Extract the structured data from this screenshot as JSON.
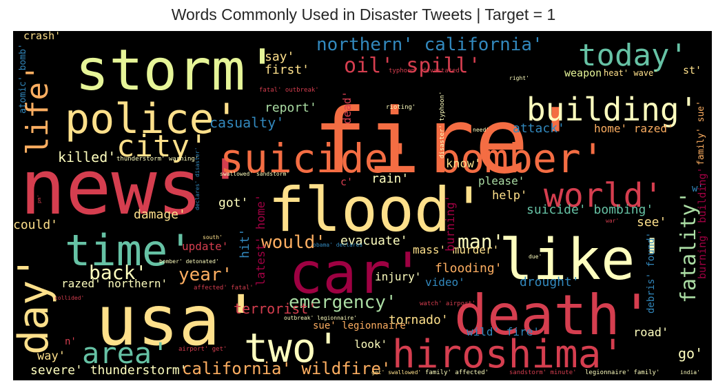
{
  "chart_data": {
    "type": "wordcloud",
    "title": "Words Commonly Used in Disaster Tweets | Target = 1",
    "background": "#000000",
    "colormap": [
      "#d53e4f",
      "#f46d43",
      "#fdae61",
      "#fee08b",
      "#ffffbf",
      "#e6f598",
      "#abdda4",
      "#66c2a5",
      "#3288bd",
      "#9e0142",
      "#5e4fa2"
    ],
    "words": [
      {
        "text": "fire'",
        "color": "#f46d43"
      },
      {
        "text": "news'",
        "color": "#d53e4f"
      },
      {
        "text": "usa'",
        "color": "#fee08b"
      },
      {
        "text": "storm'",
        "color": "#e6f598"
      },
      {
        "text": "flood'",
        "color": "#fee08b"
      },
      {
        "text": "death'",
        "color": "#d53e4f"
      },
      {
        "text": "like'",
        "color": "#ffffbf"
      },
      {
        "text": "car'",
        "color": "#9e0142"
      },
      {
        "text": "suicide' bomber'",
        "color": "#f46d43"
      },
      {
        "text": "police'",
        "color": "#fee08b"
      },
      {
        "text": "time'",
        "color": "#66c2a5"
      },
      {
        "text": "hiroshima'",
        "color": "#d53e4f"
      },
      {
        "text": "two'",
        "color": "#ffffbf"
      },
      {
        "text": "building'",
        "color": "#ffffbf"
      },
      {
        "text": "day'",
        "color": "#fee08b"
      },
      {
        "text": "world'",
        "color": "#d53e4f"
      },
      {
        "text": "today'",
        "color": "#66c2a5"
      },
      {
        "text": "area'",
        "color": "#66c2a5"
      },
      {
        "text": "city'",
        "color": "#fee08b"
      },
      {
        "text": "life'",
        "color": "#fdae61"
      },
      {
        "text": "northern' california'",
        "color": "#3288bd"
      },
      {
        "text": "oil' spill'",
        "color": "#d53e4f"
      },
      {
        "text": "fatality'",
        "color": "#abdda4"
      },
      {
        "text": "emergency'",
        "color": "#abdda4"
      },
      {
        "text": "back'",
        "color": "#ffffbf"
      },
      {
        "text": "would'",
        "color": "#fdae61"
      },
      {
        "text": "man'",
        "color": "#ffffbf"
      },
      {
        "text": "year'",
        "color": "#fdae61"
      },
      {
        "text": "california' wildfire'",
        "color": "#fdae61"
      },
      {
        "text": "killed'",
        "color": "#ffffbf"
      },
      {
        "text": "casualty'",
        "color": "#3288bd"
      },
      {
        "text": "severe' thunderstorm'",
        "color": "#ffffbf"
      },
      {
        "text": "terrorist'",
        "color": "#d53e4f"
      },
      {
        "text": "tornado'",
        "color": "#fee08b"
      },
      {
        "text": "evacuate'",
        "color": "#ffffbf"
      },
      {
        "text": "flooding'",
        "color": "#fdae61"
      },
      {
        "text": "drought'",
        "color": "#3288bd"
      },
      {
        "text": "suicide' bombing'",
        "color": "#66c2a5"
      },
      {
        "text": "report'",
        "color": "#abdda4"
      },
      {
        "text": "attack'",
        "color": "#3288bd"
      },
      {
        "text": "home' razed'",
        "color": "#fdae61"
      },
      {
        "text": "crash'",
        "color": "#fee08b"
      },
      {
        "text": "say'",
        "color": "#fee08b"
      },
      {
        "text": "first'",
        "color": "#fee08b"
      },
      {
        "text": "weapon'",
        "color": "#e6f598"
      },
      {
        "text": "heat' wave'",
        "color": "#fee08b"
      },
      {
        "text": "st'",
        "color": "#fee08b"
      },
      {
        "text": "damage'",
        "color": "#fee08b"
      },
      {
        "text": "got'",
        "color": "#ffffbf"
      },
      {
        "text": "could'",
        "color": "#fee08b"
      },
      {
        "text": "rain'",
        "color": "#ffffbf"
      },
      {
        "text": "know'",
        "color": "#fee08b"
      },
      {
        "text": "please'",
        "color": "#abdda4"
      },
      {
        "text": "help'",
        "color": "#fee08b"
      },
      {
        "text": "see'",
        "color": "#fee08b"
      },
      {
        "text": "injury'",
        "color": "#ffffbf"
      },
      {
        "text": "video'",
        "color": "#3288bd"
      },
      {
        "text": "mass' murder'",
        "color": "#fee08b"
      },
      {
        "text": "update'",
        "color": "#d53e4f"
      },
      {
        "text": "hit'",
        "color": "#3288bd"
      },
      {
        "text": "latest' home'",
        "color": "#9e0142"
      },
      {
        "text": "burning'",
        "color": "#9e0142"
      },
      {
        "text": "razed' northern'",
        "color": "#ffffbf"
      },
      {
        "text": "wild' fire'",
        "color": "#3288bd"
      },
      {
        "text": "look'",
        "color": "#ffffbf"
      },
      {
        "text": "road'",
        "color": "#ffffbf"
      },
      {
        "text": "go'",
        "color": "#ffffbf"
      },
      {
        "text": "way'",
        "color": "#fee08b"
      },
      {
        "text": "n'",
        "color": "#d53e4f"
      },
      {
        "text": "c'",
        "color": "#d53e4f"
      },
      {
        "text": "w'",
        "color": "#3288bd"
      },
      {
        "text": "sue' legionnaire'",
        "color": "#fdae61"
      },
      {
        "text": "debris' found'",
        "color": "#3288bd"
      },
      {
        "text": "burning' building'",
        "color": "#9e0142"
      },
      {
        "text": "family' sue'",
        "color": "#fdae61"
      },
      {
        "text": "dead'",
        "color": "#d53e4f"
      },
      {
        "text": "atomic' bomb'",
        "color": "#3288bd"
      },
      {
        "text": "thunderstorm' warning'",
        "color": "#ffffbf"
      },
      {
        "text": "swallowed' sandstorm'",
        "color": "#ffffbf"
      },
      {
        "text": "typhoon' devastated'",
        "color": "#d53e4f"
      },
      {
        "text": "fatal' outbreak'",
        "color": "#d53e4f"
      },
      {
        "text": "rioting'",
        "color": "#ffffbf"
      },
      {
        "text": "disaster' typhoon'",
        "color": "#ffffbf"
      },
      {
        "text": "need'",
        "color": "#ffffbf"
      },
      {
        "text": "right'",
        "color": "#ffffbf"
      },
      {
        "text": "obama' declares'",
        "color": "#3288bd"
      },
      {
        "text": "bomber' detonated'",
        "color": "#ffffbf"
      },
      {
        "text": "affected' fatal'",
        "color": "#d53e4f"
      },
      {
        "text": "south'",
        "color": "#fee08b"
      },
      {
        "text": "declares' disaster'",
        "color": "#3288bd"
      },
      {
        "text": "collided'",
        "color": "#d53e4f"
      },
      {
        "text": "airport' get'",
        "color": "#d53e4f"
      },
      {
        "text": "outbreak' legionnaire'",
        "color": "#ffffbf"
      },
      {
        "text": "watch' airport'",
        "color": "#d53e4f"
      },
      {
        "text": "due'",
        "color": "#ffffbf"
      },
      {
        "text": "war'",
        "color": "#d53e4f"
      },
      {
        "text": "get' swallowed'",
        "color": "#fee08b"
      },
      {
        "text": "family' affected'",
        "color": "#ffffbf"
      },
      {
        "text": "sandstorm' minute'",
        "color": "#d53e4f"
      },
      {
        "text": "legionnaire' family'",
        "color": "#ffffbf"
      },
      {
        "text": "india'",
        "color": "#ffffbf"
      },
      {
        "text": "pm'",
        "color": "#d53e4f"
      }
    ]
  }
}
